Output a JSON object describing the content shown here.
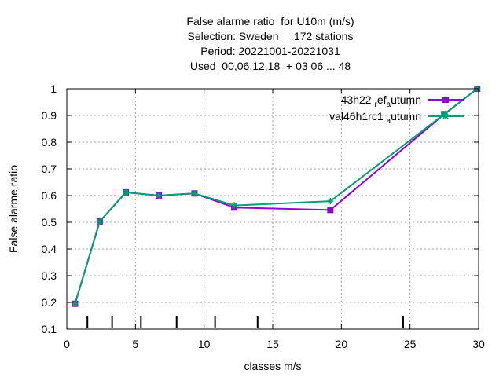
{
  "chart_data": {
    "type": "line",
    "title_lines": [
      "False alarme ratio  for U10m (m/s)",
      "Selection: Sweden     172 stations",
      "Period: 20221001-20221031",
      "Used  00,06,12,18  + 03 06 ... 48"
    ],
    "xlabel": "classes m/s",
    "ylabel": "False alarme ratio",
    "xlim": [
      0,
      30
    ],
    "ylim": [
      0.1,
      1
    ],
    "xticks": [
      0,
      5,
      10,
      15,
      20,
      25,
      30
    ],
    "yticks": [
      0.1,
      0.2,
      0.3,
      0.4,
      0.5,
      0.6,
      0.7,
      0.8,
      0.9,
      1
    ],
    "ytick_labels": [
      "0.1",
      "0.2",
      "0.3",
      "0.4",
      "0.5",
      "0.6",
      "0.7",
      "0.8",
      "0.9",
      "1"
    ],
    "grid": true,
    "legend_position": "top-right",
    "class_markers_x": [
      1.5,
      3.3,
      5.4,
      8.0,
      10.8,
      13.9,
      24.5
    ],
    "series": [
      {
        "name": "43h22 ref autumn",
        "legend_main": "43h22",
        "legend_parts": [
          [
            "r",
            "sub"
          ],
          [
            "ef",
            "base"
          ],
          [
            "a",
            "sub"
          ],
          [
            "utumn",
            "base"
          ]
        ],
        "color": "#9400d3",
        "marker": "square",
        "x": [
          0.6,
          2.4,
          4.3,
          6.7,
          9.3,
          12.2,
          19.2,
          27.5,
          29.9
        ],
        "y": [
          0.195,
          0.503,
          0.612,
          0.6,
          0.608,
          0.555,
          0.546,
          0.905,
          1.0
        ]
      },
      {
        "name": "val46h1rc1 autumn",
        "legend_main": "val46h1rc1",
        "legend_parts": [
          [
            "a",
            "sub"
          ],
          [
            "utumn",
            "base"
          ]
        ],
        "color": "#009e73",
        "marker": "star",
        "x": [
          0.6,
          2.4,
          4.3,
          6.7,
          9.3,
          12.2,
          19.2,
          27.5,
          29.9
        ],
        "y": [
          0.195,
          0.503,
          0.612,
          0.6,
          0.608,
          0.563,
          0.579,
          0.905,
          1.0
        ]
      }
    ]
  }
}
